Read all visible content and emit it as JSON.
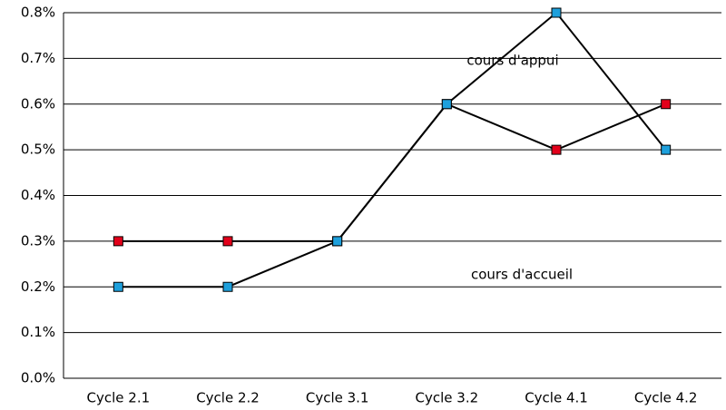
{
  "chart_data": {
    "type": "line",
    "categories": [
      "Cycle 2.1",
      "Cycle 2.2",
      "Cycle 3.1",
      "Cycle 3.2",
      "Cycle 4.1",
      "Cycle 4.2"
    ],
    "series": [
      {
        "color": "#e2001a",
        "values": [
          0.3,
          0.3,
          0.3,
          0.6,
          0.5,
          0.6
        ]
      },
      {
        "color": "#1ea0dc",
        "values": [
          0.2,
          0.2,
          0.3,
          0.6,
          0.8,
          0.5
        ]
      }
    ],
    "annotations": [
      "cours d'appui",
      "cours d'accueil"
    ],
    "ylim": [
      0,
      0.8
    ],
    "yticks": [
      {
        "value": 0,
        "label": "0.0%"
      },
      {
        "value": 0.1,
        "label": "0.1%"
      },
      {
        "value": 0.2,
        "label": "0.2%"
      },
      {
        "value": 0.3,
        "label": "0.3%"
      },
      {
        "value": 0.4,
        "label": "0.4%"
      },
      {
        "value": 0.5,
        "label": "0.5%"
      },
      {
        "value": 0.6,
        "label": "0.6%"
      },
      {
        "value": 0.7,
        "label": "0.7%"
      },
      {
        "value": 0.8,
        "label": "0.8%"
      }
    ],
    "grid": true
  }
}
